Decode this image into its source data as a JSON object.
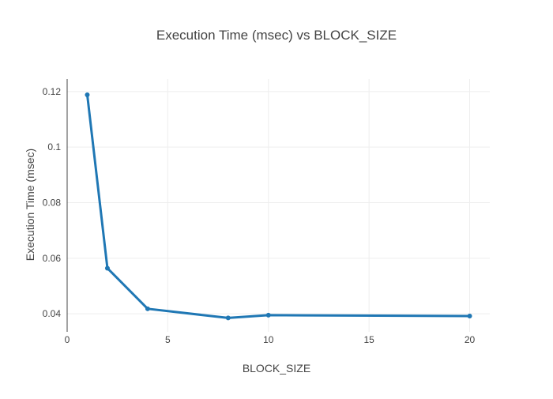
{
  "chart_data": {
    "type": "line",
    "title": "Execution Time (msec) vs BLOCK_SIZE",
    "xlabel": "BLOCK_SIZE",
    "ylabel": "Execution Time (msec)",
    "xlim": [
      0,
      21
    ],
    "ylim": [
      0.0335,
      0.1245
    ],
    "xticks": [
      0,
      5,
      10,
      15,
      20
    ],
    "xtick_labels": [
      "0",
      "5",
      "10",
      "15",
      "20"
    ],
    "yticks": [
      0.04,
      0.06,
      0.08,
      0.1,
      0.12
    ],
    "ytick_labels": [
      "0.04",
      "0.06",
      "0.08",
      "0.1",
      "0.12"
    ],
    "grid": true,
    "legend": "none",
    "series": [
      {
        "x": [
          1,
          2,
          4,
          8,
          10,
          20
        ],
        "y": [
          0.1188,
          0.0564,
          0.0418,
          0.0385,
          0.0395,
          0.0392
        ],
        "color": "#1f77b4"
      }
    ]
  }
}
